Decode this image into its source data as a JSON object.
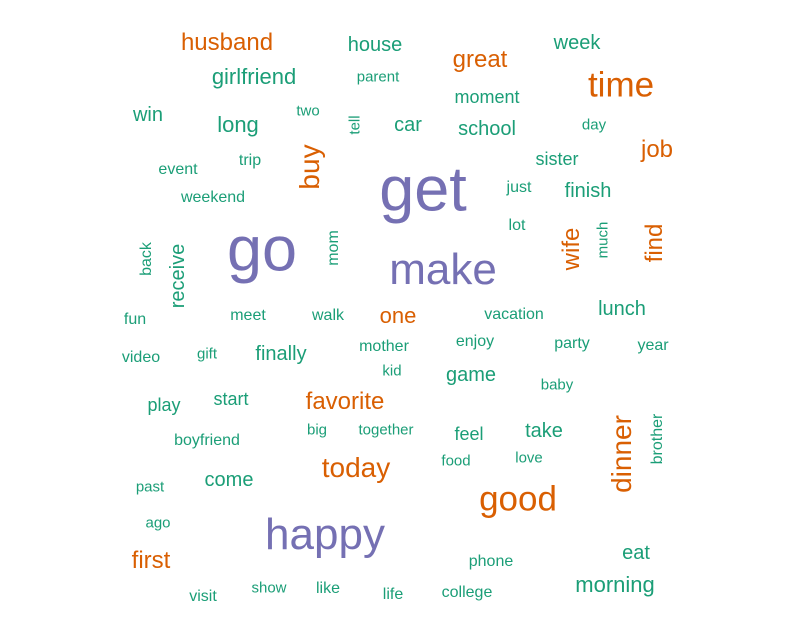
{
  "words": {
    "husband": "husband",
    "house": "house",
    "great": "great",
    "week": "week",
    "girlfriend": "girlfriend",
    "parent": "parent",
    "time": "time",
    "moment": "moment",
    "win": "win",
    "long": "long",
    "two": "two",
    "tell": "tell",
    "car": "car",
    "school": "school",
    "day": "day",
    "job": "job",
    "buy": "buy",
    "event": "event",
    "trip": "trip",
    "get": "get",
    "sister": "sister",
    "weekend": "weekend",
    "just": "just",
    "finish": "finish",
    "go": "go",
    "back": "back",
    "receive": "receive",
    "mom": "mom",
    "make": "make",
    "lot": "lot",
    "wife": "wife",
    "much": "much",
    "find": "find",
    "fun": "fun",
    "meet": "meet",
    "walk": "walk",
    "one": "one",
    "vacation": "vacation",
    "lunch": "lunch",
    "video": "video",
    "gift": "gift",
    "finally": "finally",
    "mother": "mother",
    "enjoy": "enjoy",
    "party": "party",
    "year": "year",
    "kid": "kid",
    "game": "game",
    "baby": "baby",
    "play": "play",
    "start": "start",
    "favorite": "favorite",
    "dinner": "dinner",
    "brother": "brother",
    "boyfriend": "boyfriend",
    "big": "big",
    "together": "together",
    "feel": "feel",
    "take": "take",
    "food": "food",
    "love": "love",
    "today": "today",
    "come": "come",
    "past": "past",
    "good": "good",
    "ago": "ago",
    "happy": "happy",
    "first": "first",
    "eat": "eat",
    "phone": "phone",
    "morning": "morning",
    "show": "show",
    "like": "like",
    "visit": "visit",
    "life": "life",
    "college": "college"
  },
  "colors": {
    "purple": "#7570b3",
    "orange": "#d95f02",
    "green": "#1b9e77"
  }
}
